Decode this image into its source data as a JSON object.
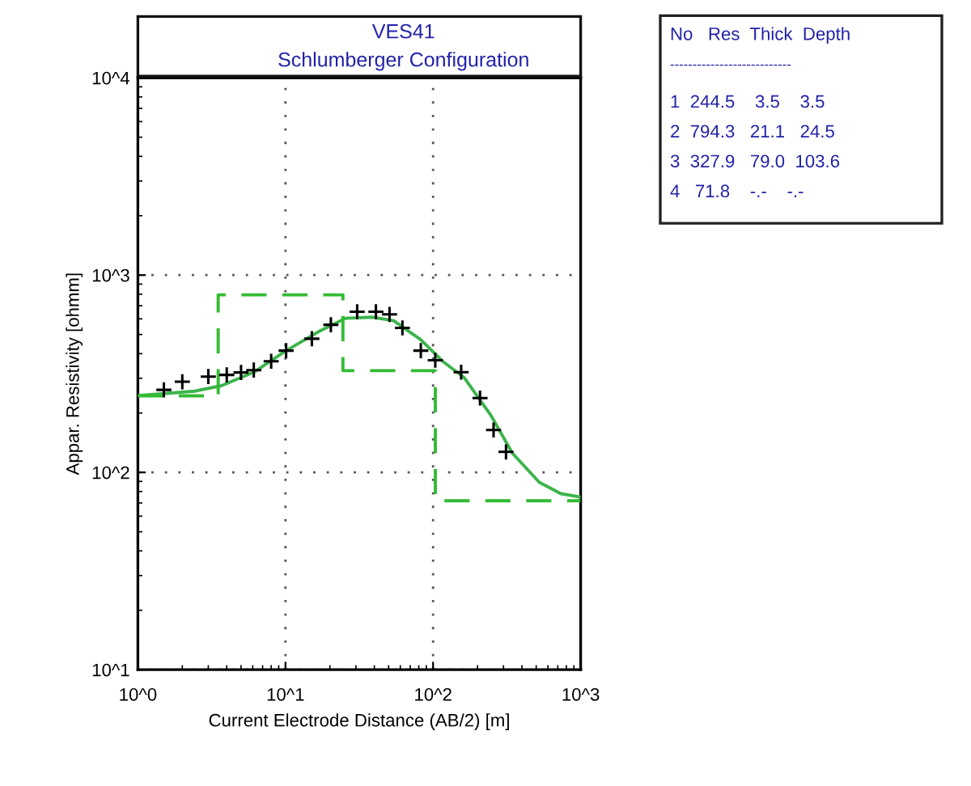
{
  "chart_data": {
    "type": "line",
    "title": "VES41",
    "subtitle": "Schlumberger Configuration",
    "xlabel": "Current Electrode Distance (AB/2) [m]",
    "ylabel": "Appar. Resistivity [ohmm]",
    "log": "xy",
    "grid": true,
    "xlim": [
      1,
      1000
    ],
    "ylim": [
      10,
      10000
    ],
    "xticks": [
      {
        "value": 1,
        "label": "10^0"
      },
      {
        "value": 10,
        "label": "10^1"
      },
      {
        "value": 100,
        "label": "10^2"
      },
      {
        "value": 1000,
        "label": "10^3"
      }
    ],
    "yticks": [
      {
        "value": 10,
        "label": "10^1"
      },
      {
        "value": 100,
        "label": "10^2"
      },
      {
        "value": 1000,
        "label": "10^3"
      },
      {
        "value": 10000,
        "label": "10^4"
      }
    ],
    "series": [
      {
        "type": "scatter",
        "marker": "cross",
        "color": "#000000",
        "x": [
          1.5,
          2.0,
          3.0,
          4.0,
          5.0,
          6.1,
          8.0,
          10.1,
          15.1,
          20.3,
          30.6,
          41,
          50.7,
          62,
          82.6,
          103.5,
          155,
          208,
          257,
          312
        ],
        "values": [
          262,
          288,
          306,
          312,
          321,
          330,
          366,
          414,
          476,
          560,
          652,
          652,
          632,
          540,
          414,
          370,
          322,
          238,
          164,
          127
        ]
      },
      {
        "color": "#3cb44a",
        "marker": "none",
        "line_style": "solid",
        "x": [
          1,
          2.42,
          3.68,
          6.1,
          10.1,
          16.7,
          25.5,
          38.7,
          54.2,
          82.6,
          116,
          162,
          246,
          345,
          525,
          735,
          1000
        ],
        "values": [
          245,
          258,
          275,
          322,
          414,
          516,
          604,
          612,
          587,
          470,
          366,
          303,
          195,
          125,
          89,
          78,
          75
        ]
      },
      {
        "type": "step",
        "color": "#33bb33",
        "marker": "none",
        "line_style": "dashed",
        "x": [
          1,
          3.5,
          24.5,
          103.6,
          1000
        ],
        "values": [
          244.5,
          794.3,
          327.9,
          71.8,
          71.8
        ]
      }
    ],
    "annotations": [
      "No   Res  Thick  Depth",
      "---------------------------",
      "1  244.5    3.5    3.5",
      "2  794.3   21.1   24.5",
      "3  327.9   79.0  103.6",
      "4   71.8    -.-    -.-"
    ]
  }
}
